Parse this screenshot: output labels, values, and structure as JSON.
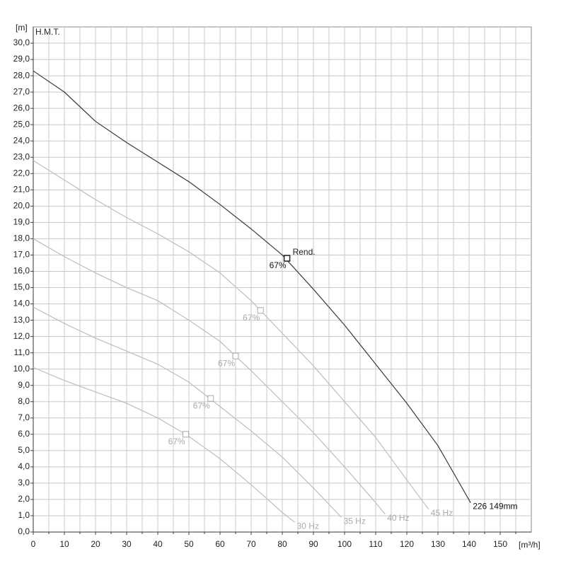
{
  "chart_data": {
    "type": "line",
    "y_unit_label": "[m]",
    "x_unit_label": "[m³/h]",
    "y_title": "H.M.T.",
    "xlim": [
      0,
      160
    ],
    "ylim": [
      0,
      31
    ],
    "xticks": [
      0,
      10,
      20,
      30,
      40,
      50,
      60,
      70,
      80,
      90,
      100,
      110,
      120,
      130,
      140,
      150
    ],
    "x_minor_ticks": [
      5,
      15,
      25,
      35,
      45,
      55,
      65,
      75,
      85,
      95,
      105,
      115,
      125,
      135,
      145,
      155
    ],
    "yticks": [
      {
        "value": 0,
        "label": "0,0"
      },
      {
        "value": 1,
        "label": "1,0"
      },
      {
        "value": 2,
        "label": "2,0"
      },
      {
        "value": 3,
        "label": "3,0"
      },
      {
        "value": 4,
        "label": "4,0"
      },
      {
        "value": 5,
        "label": "5,0"
      },
      {
        "value": 6,
        "label": "6,0"
      },
      {
        "value": 7,
        "label": "7,0"
      },
      {
        "value": 8,
        "label": "8,0"
      },
      {
        "value": 9,
        "label": "9,0"
      },
      {
        "value": 10,
        "label": "10,0"
      },
      {
        "value": 11,
        "label": "11,0"
      },
      {
        "value": 12,
        "label": "12,0"
      },
      {
        "value": 13,
        "label": "13,0"
      },
      {
        "value": 14,
        "label": "14,0"
      },
      {
        "value": 15,
        "label": "15,0"
      },
      {
        "value": 16,
        "label": "16,0"
      },
      {
        "value": 17,
        "label": "17,0"
      },
      {
        "value": 18,
        "label": "18,0"
      },
      {
        "value": 19,
        "label": "19,0"
      },
      {
        "value": 20,
        "label": "20,0"
      },
      {
        "value": 21,
        "label": "21,0"
      },
      {
        "value": 22,
        "label": "22,0"
      },
      {
        "value": 23,
        "label": "23,0"
      },
      {
        "value": 24,
        "label": "24,0"
      },
      {
        "value": 25,
        "label": "25,0"
      },
      {
        "value": 26,
        "label": "26,0"
      },
      {
        "value": 27,
        "label": "27,0"
      },
      {
        "value": 28,
        "label": "28,0"
      },
      {
        "value": 29,
        "label": "29,0"
      },
      {
        "value": 30,
        "label": "30,0"
      }
    ],
    "grid": true,
    "bep_title": "Rend.",
    "series": [
      {
        "name": "226 149mm",
        "color": "#3a3a3a",
        "x": [
          0,
          10,
          20,
          30,
          40,
          50,
          60,
          70,
          80,
          90,
          100,
          110,
          120,
          130,
          140.5
        ],
        "values": [
          28.3,
          27.0,
          25.2,
          23.9,
          22.7,
          21.5,
          20.1,
          18.6,
          17.0,
          14.9,
          12.7,
          10.3,
          7.9,
          5.3,
          1.8
        ],
        "bep": {
          "x": 81.5,
          "y": 16.8,
          "label": "67%"
        }
      },
      {
        "name": "45 Hz",
        "color": "#bdbdbd",
        "x": [
          0,
          10,
          20,
          30,
          40,
          50,
          60,
          70,
          80,
          90,
          100,
          110,
          120,
          127
        ],
        "values": [
          22.8,
          21.6,
          20.4,
          19.3,
          18.3,
          17.2,
          15.9,
          14.2,
          12.2,
          10.2,
          8.0,
          5.8,
          3.2,
          1.4
        ],
        "bep": {
          "x": 73,
          "y": 13.6,
          "label": "67%"
        }
      },
      {
        "name": "40 Hz",
        "color": "#bdbdbd",
        "x": [
          0,
          10,
          20,
          30,
          40,
          50,
          60,
          70,
          80,
          90,
          100,
          110,
          113
        ],
        "values": [
          18.0,
          16.9,
          15.9,
          15.0,
          14.2,
          13.0,
          11.7,
          9.9,
          8.0,
          6.1,
          4.0,
          1.8,
          1.1
        ],
        "bep": {
          "x": 65,
          "y": 10.8,
          "label": "67%"
        }
      },
      {
        "name": "35 Hz",
        "color": "#bdbdbd",
        "x": [
          0,
          10,
          20,
          30,
          40,
          50,
          60,
          70,
          80,
          90,
          99
        ],
        "values": [
          13.8,
          12.8,
          11.9,
          11.1,
          10.3,
          9.2,
          7.7,
          6.2,
          4.6,
          2.7,
          0.9
        ],
        "bep": {
          "x": 57,
          "y": 8.2,
          "label": "67%"
        }
      },
      {
        "name": "30 Hz",
        "color": "#bdbdbd",
        "x": [
          0,
          10,
          20,
          30,
          40,
          49,
          60,
          70,
          80,
          84
        ],
        "values": [
          10.1,
          9.3,
          8.6,
          7.9,
          7.0,
          6.0,
          4.5,
          2.9,
          1.2,
          0.6
        ],
        "bep": {
          "x": 49,
          "y": 6.0,
          "label": "67%"
        }
      }
    ]
  }
}
